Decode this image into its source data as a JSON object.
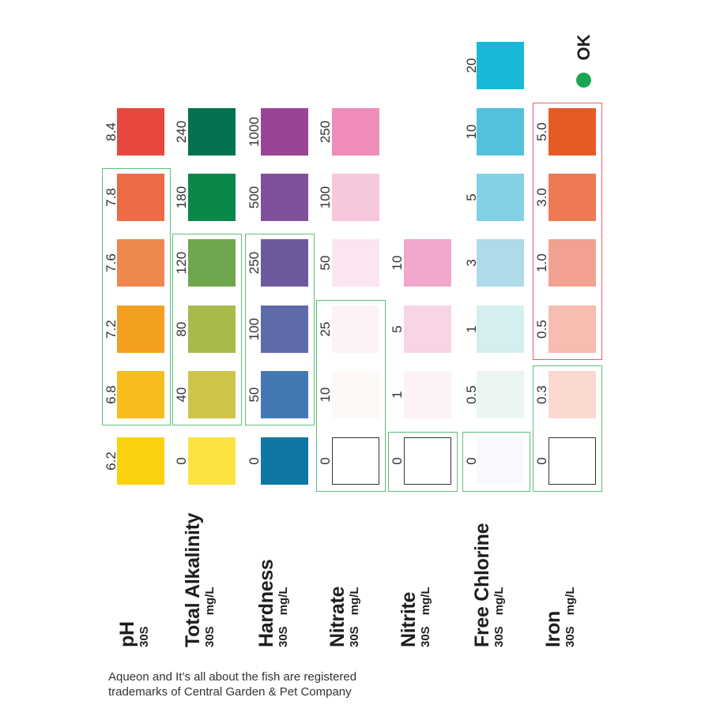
{
  "chart_data": {
    "type": "color_reference_chart",
    "columns": [
      {
        "name": "ph",
        "title": "pH",
        "time": "30S",
        "unit": "",
        "levels": [
          {
            "value": "6.2",
            "color": "#fcd20f"
          },
          {
            "value": "6.8",
            "color": "#f7bd1e"
          },
          {
            "value": "7.2",
            "color": "#f3a020"
          },
          {
            "value": "7.6",
            "color": "#ef884f"
          },
          {
            "value": "7.8",
            "color": "#ec6a45"
          },
          {
            "value": "8.4",
            "color": "#e8473f"
          }
        ]
      },
      {
        "name": "total-alkalinity",
        "title": "Total Alkalinity",
        "time": "30S",
        "unit": "mg/L",
        "levels": [
          {
            "value": "0",
            "color": "#fde243"
          },
          {
            "value": "40",
            "color": "#cfc44a"
          },
          {
            "value": "80",
            "color": "#a7bb4b"
          },
          {
            "value": "120",
            "color": "#6ea74e"
          },
          {
            "value": "180",
            "color": "#088749"
          },
          {
            "value": "240",
            "color": "#047250"
          }
        ]
      },
      {
        "name": "hardness",
        "title": "Hardness",
        "time": "30S",
        "unit": "mg/L",
        "levels": [
          {
            "value": "0",
            "color": "#0f77a4"
          },
          {
            "value": "50",
            "color": "#4478b4"
          },
          {
            "value": "100",
            "color": "#5f6aab"
          },
          {
            "value": "250",
            "color": "#6d5a9c"
          },
          {
            "value": "500",
            "color": "#80509a"
          },
          {
            "value": "1000",
            "color": "#9a4495"
          }
        ]
      },
      {
        "name": "nitrate",
        "title": "Nitrate",
        "time": "30S",
        "unit": "mg/L",
        "levels": [
          {
            "value": "0",
            "color": "blank"
          },
          {
            "value": "10",
            "color": "#fef8f7"
          },
          {
            "value": "25",
            "color": "#fdf3f7"
          },
          {
            "value": "50",
            "color": "#fbe5f0"
          },
          {
            "value": "100",
            "color": "#f7c7de"
          },
          {
            "value": "250",
            "color": "#ef8cbc"
          }
        ]
      },
      {
        "name": "nitrite",
        "title": "Nitrite",
        "time": "30S",
        "unit": "mg/L",
        "levels": [
          {
            "value": "0",
            "color": "blank"
          },
          {
            "value": "1",
            "color": "#fdf2f8"
          },
          {
            "value": "5",
            "color": "#f8d4e6"
          },
          {
            "value": "10",
            "color": "#f0a8cc"
          }
        ]
      },
      {
        "name": "free-chlorine",
        "title": "Free Chlorine",
        "time": "30S",
        "unit": "mg/L",
        "levels": [
          {
            "value": "0",
            "color": "#f7f9fe"
          },
          {
            "value": "0.5",
            "color": "#ebf5f3"
          },
          {
            "value": "1",
            "color": "#d5eef0"
          },
          {
            "value": "3",
            "color": "#aedbe9"
          },
          {
            "value": "5",
            "color": "#82d0e5"
          },
          {
            "value": "10",
            "color": "#52c1dc"
          },
          {
            "value": "20",
            "color": "#17b8d8"
          }
        ]
      },
      {
        "name": "iron",
        "title": "Iron",
        "time": "30S",
        "unit": "mg/L",
        "levels": [
          {
            "value": "0",
            "color": "blank"
          },
          {
            "value": "0.3",
            "color": "#fad9d1"
          },
          {
            "value": "0.5",
            "color": "#f6bdb0"
          },
          {
            "value": "1.0",
            "color": "#f2a190"
          },
          {
            "value": "3.0",
            "color": "#ee7a54"
          },
          {
            "value": "5.0",
            "color": "#e85a25"
          }
        ]
      }
    ],
    "ok_ranges": {
      "ph": [
        1,
        4
      ],
      "total-alkalinity": [
        1,
        3
      ],
      "hardness": [
        1,
        3
      ],
      "nitrate": [
        0,
        2
      ],
      "nitrite": [
        0,
        0
      ],
      "free-chlorine": [
        0,
        0
      ],
      "iron": [
        0,
        1
      ]
    },
    "warning_ranges": {
      "iron": [
        2,
        5
      ]
    }
  },
  "legend": {
    "ok_label": "OK",
    "ok_color": "#1aa751"
  },
  "footer": {
    "line1": "Aqueon and It’s all about the fish are registered",
    "line2": "trademarks of Central Garden & Pet Company"
  }
}
